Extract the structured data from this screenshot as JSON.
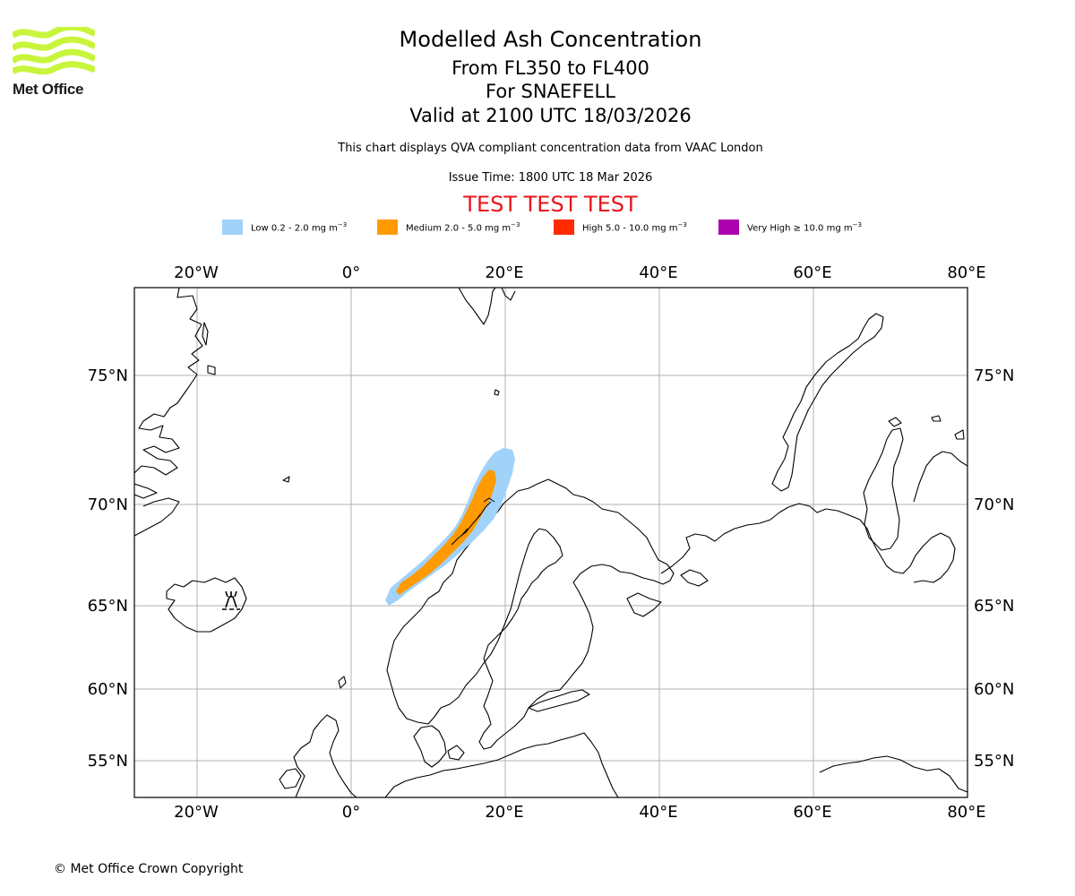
{
  "logo": {
    "text": "Met Office",
    "color": "#c8f53c"
  },
  "header": {
    "title": "Modelled Ash Concentration",
    "flight_levels": "From FL350 to FL400",
    "volcano": "For SNAEFELL",
    "valid_time": "Valid at 2100 UTC 18/03/2026",
    "description": "This chart displays QVA compliant concentration data from VAAC London",
    "issue_time": "Issue Time: 1800 UTC 18 Mar 2026",
    "test_banner": "TEST TEST TEST"
  },
  "legend": [
    {
      "label": "Low 0.2 - 2.0 mg m",
      "color": "#a0d2fa"
    },
    {
      "label": "Medium 2.0 - 5.0 mg m",
      "color": "#ff9a00"
    },
    {
      "label": "High 5.0 - 10.0 mg m",
      "color": "#ff2a00"
    },
    {
      "label": "Very High  ≥  10.0 mg m",
      "color": "#ad00ad"
    }
  ],
  "legend_unit_exp": "−3",
  "map": {
    "longitude_labels": [
      "20°W",
      "0°",
      "20°E",
      "40°E",
      "60°E",
      "80°E"
    ],
    "latitude_labels": [
      "75°N",
      "70°N",
      "65°N",
      "60°N",
      "55°N"
    ],
    "gridline_color": "#b0b0b0"
  },
  "footer": {
    "copyright": "© Met Office Crown Copyright"
  }
}
